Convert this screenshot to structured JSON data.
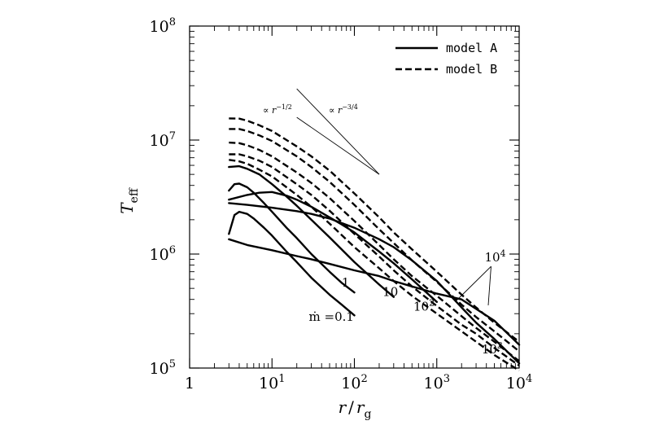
{
  "chart_data": {
    "type": "line",
    "x_scale": "log",
    "y_scale": "log",
    "xlim": [
      1,
      10000
    ],
    "ylim": [
      100000,
      100000000
    ],
    "xlabel": {
      "main": "r",
      "sep": "/",
      "sym": "r",
      "sub": "g"
    },
    "ylabel": {
      "main": "T",
      "sub": "eff"
    },
    "x_ticks": [
      {
        "value": 1,
        "base": "1",
        "exp": ""
      },
      {
        "value": 10,
        "base": "10",
        "exp": "1"
      },
      {
        "value": 100,
        "base": "10",
        "exp": "2"
      },
      {
        "value": 1000,
        "base": "10",
        "exp": "3"
      },
      {
        "value": 10000,
        "base": "10",
        "exp": "4"
      }
    ],
    "y_ticks": [
      {
        "value": 100000,
        "base": "10",
        "exp": "5"
      },
      {
        "value": 1000000,
        "base": "10",
        "exp": "6"
      },
      {
        "value": 10000000,
        "base": "10",
        "exp": "7"
      },
      {
        "value": 100000000,
        "base": "10",
        "exp": "8"
      }
    ],
    "legend": {
      "placement": "top-right",
      "items": [
        {
          "label": "model A",
          "style": "solid"
        },
        {
          "label": "model B",
          "style": "dashed"
        }
      ]
    },
    "slope_guides": [
      {
        "label": "∝ r",
        "exp": "−1/2",
        "slope": -0.5,
        "x_range": [
          20,
          200
        ],
        "y_end": 5000000
      },
      {
        "label": "∝ r",
        "exp": "−3/4",
        "slope": -0.75,
        "x_range": [
          20,
          200
        ],
        "y_end": 5000000
      }
    ],
    "curve_labels": [
      {
        "text": "ṁ = 0.1",
        "display": "ṁ =0.1",
        "x": 28,
        "y": 260000
      },
      {
        "text": "1",
        "display": "1",
        "x": 70,
        "y": 520000
      },
      {
        "text": "10",
        "display": "10",
        "exp": "",
        "x": 220,
        "y": 430000
      },
      {
        "text": "10^2",
        "display": "10",
        "exp": "2",
        "x": 520,
        "y": 320000
      },
      {
        "text": "10^3",
        "display": "10",
        "exp": "3",
        "x": 3500,
        "y": 135000
      },
      {
        "text": "10^4",
        "display": "10",
        "exp": "4",
        "x": 3800,
        "y": 860000
      }
    ],
    "series": [
      {
        "name": "model A, ṁ=0.1",
        "style": "solid",
        "x": [
          3,
          3.5,
          4,
          5,
          6,
          8,
          10,
          15,
          20,
          30,
          50,
          70,
          100
        ],
        "y": [
          1500000,
          2200000,
          2350000,
          2250000,
          2050000,
          1700000,
          1450000,
          1050000,
          850000,
          620000,
          440000,
          360000,
          290000
        ]
      },
      {
        "name": "model A, ṁ=1",
        "style": "solid",
        "x": [
          3,
          3.5,
          4,
          5,
          6,
          8,
          10,
          15,
          20,
          30,
          50,
          70,
          100
        ],
        "y": [
          3600000,
          4100000,
          4150000,
          3850000,
          3450000,
          2800000,
          2350000,
          1700000,
          1380000,
          1000000,
          700000,
          560000,
          460000
        ]
      },
      {
        "name": "model A, ṁ=10",
        "style": "solid",
        "x": [
          3,
          4,
          5,
          7,
          10,
          15,
          20,
          30,
          50,
          100,
          200,
          300
        ],
        "y": [
          5800000,
          5900000,
          5600000,
          5000000,
          4100000,
          3200000,
          2650000,
          2000000,
          1400000,
          850000,
          540000,
          420000
        ]
      },
      {
        "name": "model A, ṁ=10^2",
        "style": "solid",
        "x": [
          3,
          5,
          7,
          10,
          15,
          20,
          30,
          50,
          70,
          100,
          200,
          300,
          500,
          1000
        ],
        "y": [
          3000000,
          3300000,
          3450000,
          3500000,
          3250000,
          3000000,
          2600000,
          2100000,
          1820000,
          1550000,
          1050000,
          830000,
          600000,
          380000
        ]
      },
      {
        "name": "model A, ṁ=10^3",
        "style": "solid",
        "x": [
          3,
          5,
          10,
          20,
          30,
          50,
          100,
          200,
          300,
          500,
          1000,
          2000,
          3000,
          5000,
          10000
        ],
        "y": [
          2800000,
          2700000,
          2550000,
          2380000,
          2250000,
          2050000,
          1700000,
          1350000,
          1150000,
          880000,
          580000,
          340000,
          250000,
          180000,
          110000
        ]
      },
      {
        "name": "model A, ṁ=10^4",
        "style": "solid",
        "x": [
          3,
          5,
          10,
          20,
          30,
          50,
          100,
          200,
          300,
          500,
          1000,
          2000,
          5000,
          10000
        ],
        "y": [
          1350000,
          1200000,
          1080000,
          960000,
          900000,
          820000,
          720000,
          640000,
          580000,
          520000,
          450000,
          400000,
          260000,
          160000
        ]
      },
      {
        "name": "model B, ṁ=0.1",
        "style": "dashed",
        "x": [
          3,
          4,
          5,
          7,
          10,
          20,
          30,
          50,
          100,
          200,
          300,
          500,
          1000,
          2000,
          3000,
          5000,
          10000
        ],
        "y": [
          6700000,
          6500000,
          6200000,
          5500000,
          4800000,
          3300000,
          2600000,
          1850000,
          1150000,
          750000,
          580000,
          430000,
          300000,
          210000,
          170000,
          130000,
          95000
        ]
      },
      {
        "name": "model B, ṁ=1",
        "style": "dashed",
        "x": [
          3,
          4,
          5,
          7,
          10,
          20,
          30,
          50,
          100,
          200,
          300,
          500,
          1000,
          2000,
          3000,
          5000,
          10000
        ],
        "y": [
          7500000,
          7500000,
          7200000,
          6600000,
          5800000,
          4100000,
          3300000,
          2400000,
          1500000,
          950000,
          720000,
          520000,
          350000,
          240000,
          200000,
          150000,
          105000
        ]
      },
      {
        "name": "model B, ṁ=10",
        "style": "dashed",
        "x": [
          3,
          4,
          5,
          7,
          10,
          20,
          30,
          50,
          100,
          200,
          300,
          500,
          1000,
          2000,
          3000,
          5000,
          10000
        ],
        "y": [
          9500000,
          9400000,
          9000000,
          8200000,
          7200000,
          5200000,
          4200000,
          3100000,
          1950000,
          1200000,
          900000,
          640000,
          430000,
          285000,
          225000,
          170000,
          115000
        ]
      },
      {
        "name": "model B, ṁ=10^2",
        "style": "dashed",
        "x": [
          3,
          4,
          5,
          7,
          10,
          20,
          30,
          50,
          100,
          200,
          300,
          500,
          1000,
          2000,
          3000,
          5000,
          10000
        ],
        "y": [
          12500000,
          12500000,
          12000000,
          11000000,
          9800000,
          7200000,
          5800000,
          4300000,
          2700000,
          1650000,
          1250000,
          880000,
          570000,
          360000,
          280000,
          210000,
          140000
        ]
      },
      {
        "name": "model B, ṁ=10^3",
        "style": "dashed",
        "x": [
          3,
          4,
          5,
          7,
          10,
          20,
          30,
          50,
          100,
          200,
          300,
          500,
          1000,
          2000,
          3000,
          5000,
          10000
        ],
        "y": [
          15500000,
          15400000,
          14800000,
          13500000,
          12000000,
          8800000,
          7200000,
          5400000,
          3400000,
          2100000,
          1550000,
          1100000,
          700000,
          440000,
          340000,
          250000,
          170000
        ]
      }
    ]
  }
}
